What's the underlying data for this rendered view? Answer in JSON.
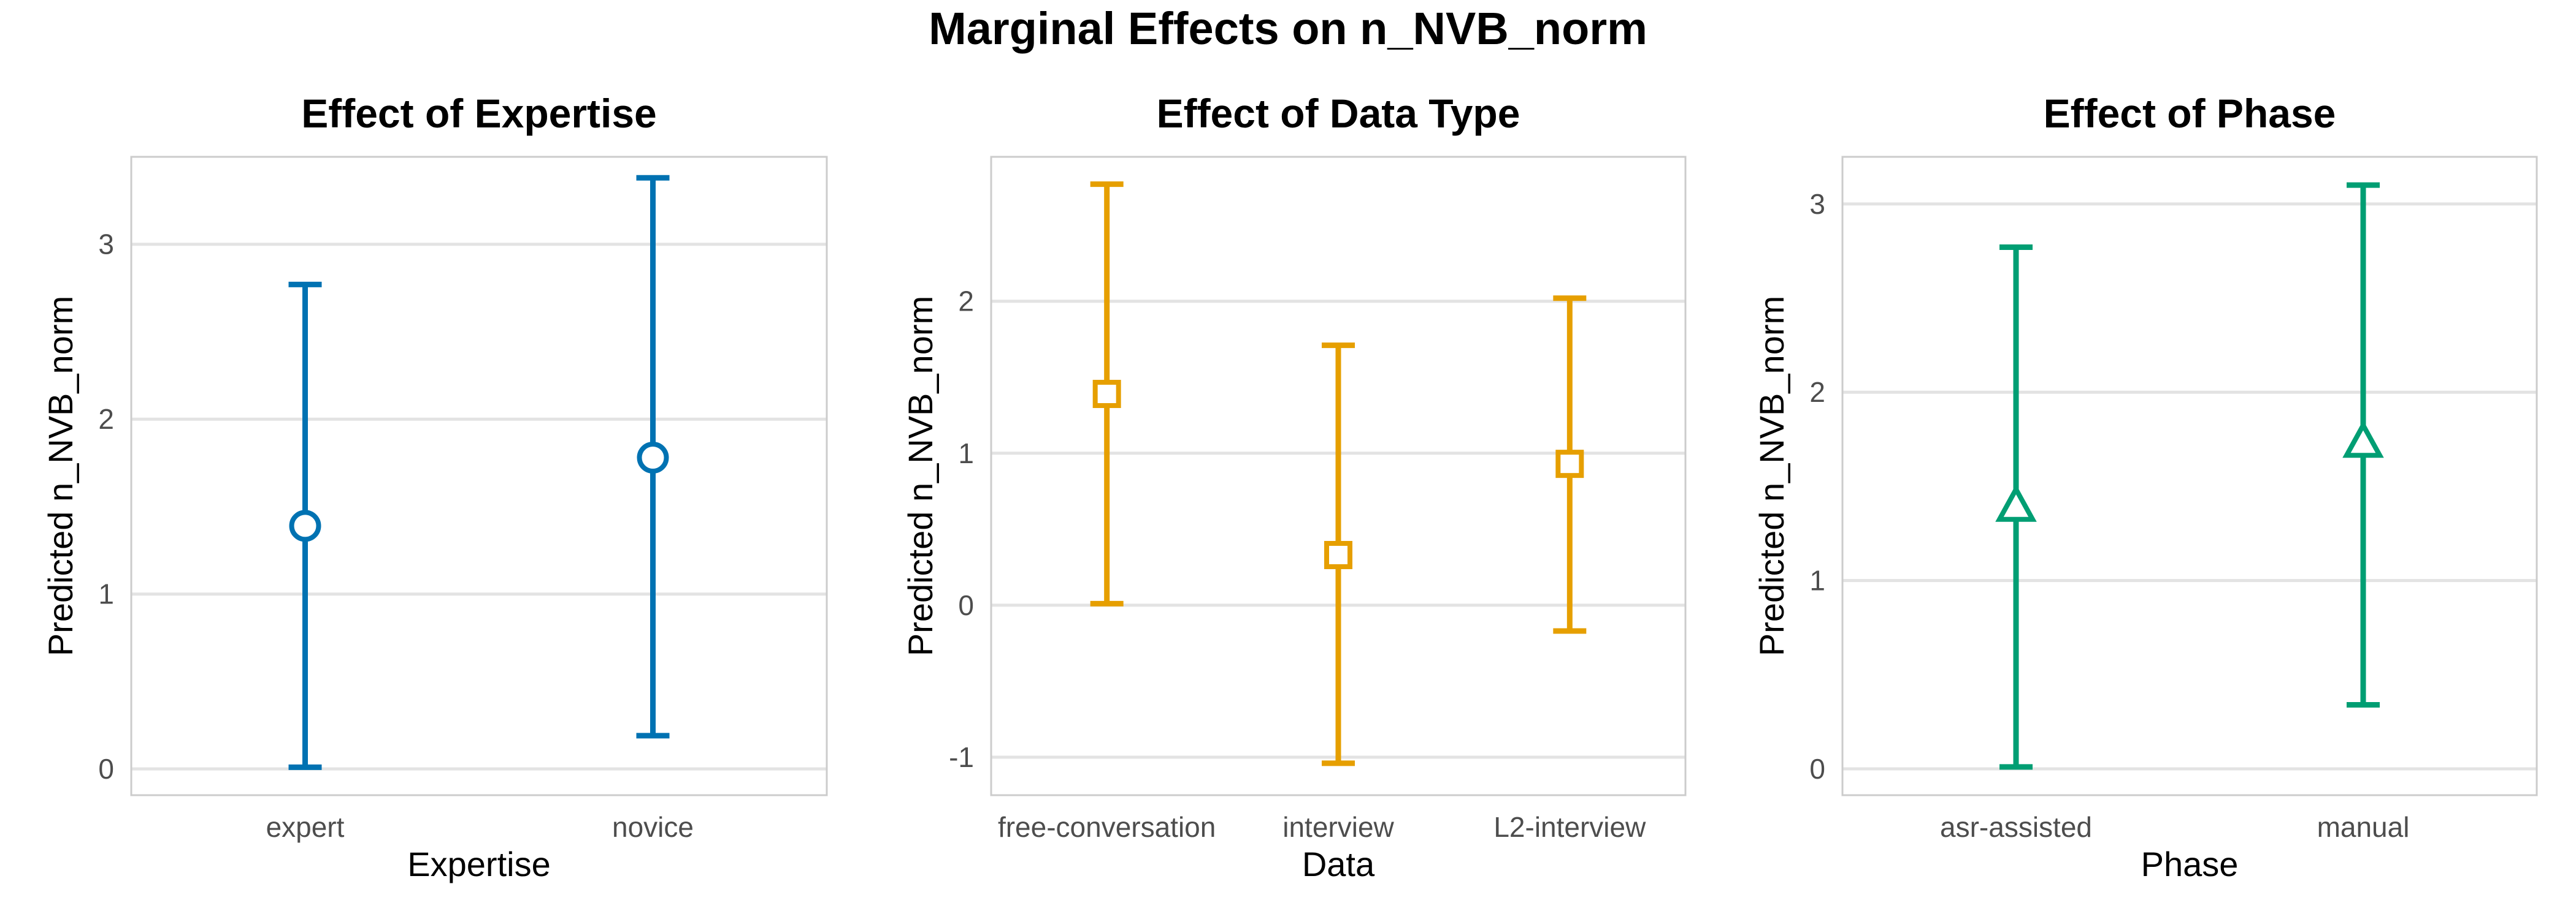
{
  "figure": {
    "title": "Marginal Effects on n_NVB_norm"
  },
  "chart_data": [
    {
      "type": "errorbar",
      "title": "Effect of Expertise",
      "xlabel": "Expertise",
      "ylabel": "Predicted n_NVB_norm",
      "categories": [
        "expert",
        "novice"
      ],
      "series": [
        {
          "estimate": [
            1.39,
            1.78
          ],
          "lower": [
            0.01,
            0.19
          ],
          "upper": [
            2.77,
            3.38
          ]
        }
      ],
      "ylim": [
        -0.15,
        3.5
      ],
      "yticks": [
        0,
        1,
        2,
        3
      ],
      "color": "#0072B2",
      "marker": "circle",
      "grid": true,
      "legend": "none"
    },
    {
      "type": "errorbar",
      "title": "Effect of Data Type",
      "xlabel": "Data",
      "ylabel": "Predicted n_NVB_norm",
      "categories": [
        "free-conversation",
        "interview",
        "L2-interview"
      ],
      "series": [
        {
          "estimate": [
            1.39,
            0.33,
            0.93
          ],
          "lower": [
            0.01,
            -1.04,
            -0.17
          ],
          "upper": [
            2.77,
            1.71,
            2.02
          ]
        }
      ],
      "ylim": [
        -1.25,
        2.95
      ],
      "yticks": [
        -1,
        0,
        1,
        2
      ],
      "color": "#E69F00",
      "marker": "square",
      "grid": true,
      "legend": "none"
    },
    {
      "type": "errorbar",
      "title": "Effect of Phase",
      "xlabel": "Phase",
      "ylabel": "Predicted n_NVB_norm",
      "categories": [
        "asr-assisted",
        "manual"
      ],
      "series": [
        {
          "estimate": [
            1.39,
            1.73
          ],
          "lower": [
            0.01,
            0.34
          ],
          "upper": [
            2.77,
            3.1
          ]
        }
      ],
      "ylim": [
        -0.14,
        3.25
      ],
      "yticks": [
        0,
        1,
        2,
        3
      ],
      "color": "#009E73",
      "marker": "triangle",
      "grid": true,
      "legend": "none"
    }
  ]
}
